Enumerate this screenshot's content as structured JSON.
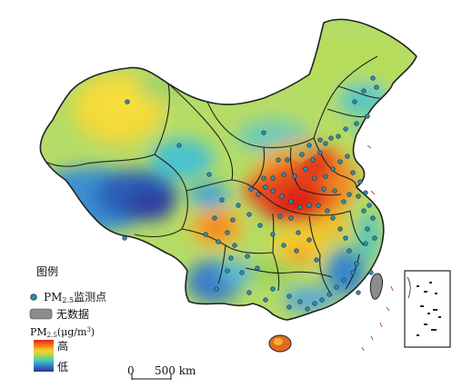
{
  "legend": {
    "title": "图例",
    "station_label_prefix": "PM",
    "station_label_sub": "2.5",
    "station_label_suffix": "监测点",
    "nodata_label": "无数据",
    "scale_prefix": "PM",
    "scale_sub": "2.5",
    "scale_suffix": "(μg/m",
    "scale_sup": "3",
    "scale_close": ")",
    "high_label": "高",
    "low_label": "低",
    "ramp_colors": [
      "#e0201a",
      "#f2791c",
      "#f7d22c",
      "#a4d84e",
      "#3ec7c0",
      "#2f78c2",
      "#3a2f9a"
    ]
  },
  "scalebar": {
    "start_label": "0",
    "end_label": "500 km"
  },
  "colors": {
    "boundary": "#222222",
    "station_fill": "#2b8fb0",
    "station_stroke": "#203040",
    "nodata": "#8c8c8c"
  }
}
